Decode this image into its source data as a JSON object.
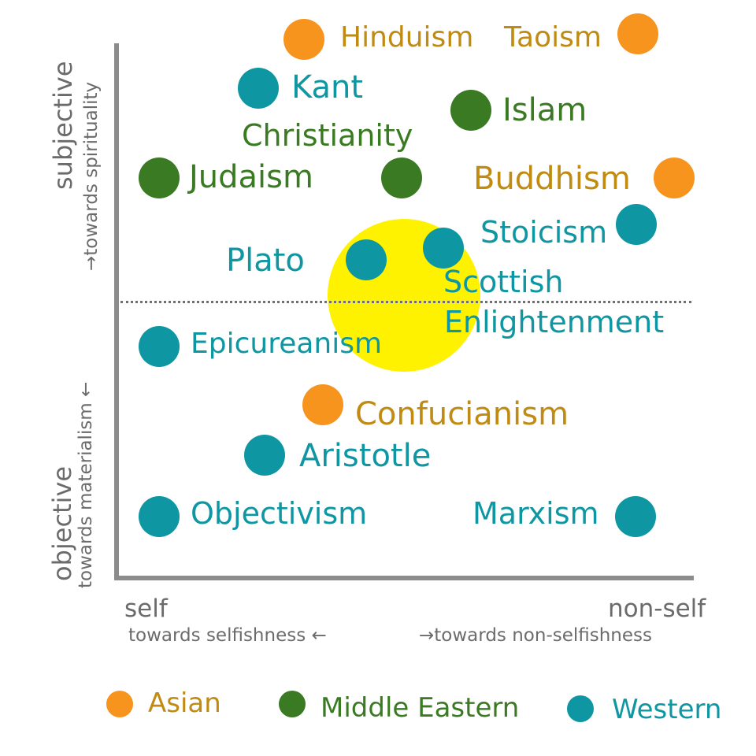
{
  "colors": {
    "asian": "#f7941d",
    "middle_eastern": "#3a7a23",
    "western": "#0e97a3",
    "asian_text": "#c08b12",
    "western_text": "#0e97a3",
    "highlight": "#fff200",
    "axis": "#8c8c8c"
  },
  "axes": {
    "y_top_main": "subjective",
    "y_top_sub": "→towards spirituality",
    "y_bottom_main": "objective",
    "y_bottom_sub": "towards materialism ←",
    "x_left_main": "self",
    "x_right_main": "non-self",
    "x_left_sub": "towards selfishness ←",
    "x_right_sub": "→towards non-selfishness"
  },
  "legend": {
    "asian": "Asian",
    "middle_eastern": "Middle Eastern",
    "western": "Western"
  },
  "items": {
    "hinduism": "Hinduism",
    "taoism": "Taoism",
    "kant": "Kant",
    "islam": "Islam",
    "christianity": "Christianity",
    "judaism": "Judaism",
    "buddhism": "Buddhism",
    "stoicism": "Stoicism",
    "plato": "Plato",
    "scottish_1": "Scottish",
    "scottish_2": "Enlightenment",
    "epicureanism": "Epicureanism",
    "confucianism": "Confucianism",
    "aristotle": "Aristotle",
    "objectivism": "Objectivism",
    "marxism": "Marxism"
  }
}
